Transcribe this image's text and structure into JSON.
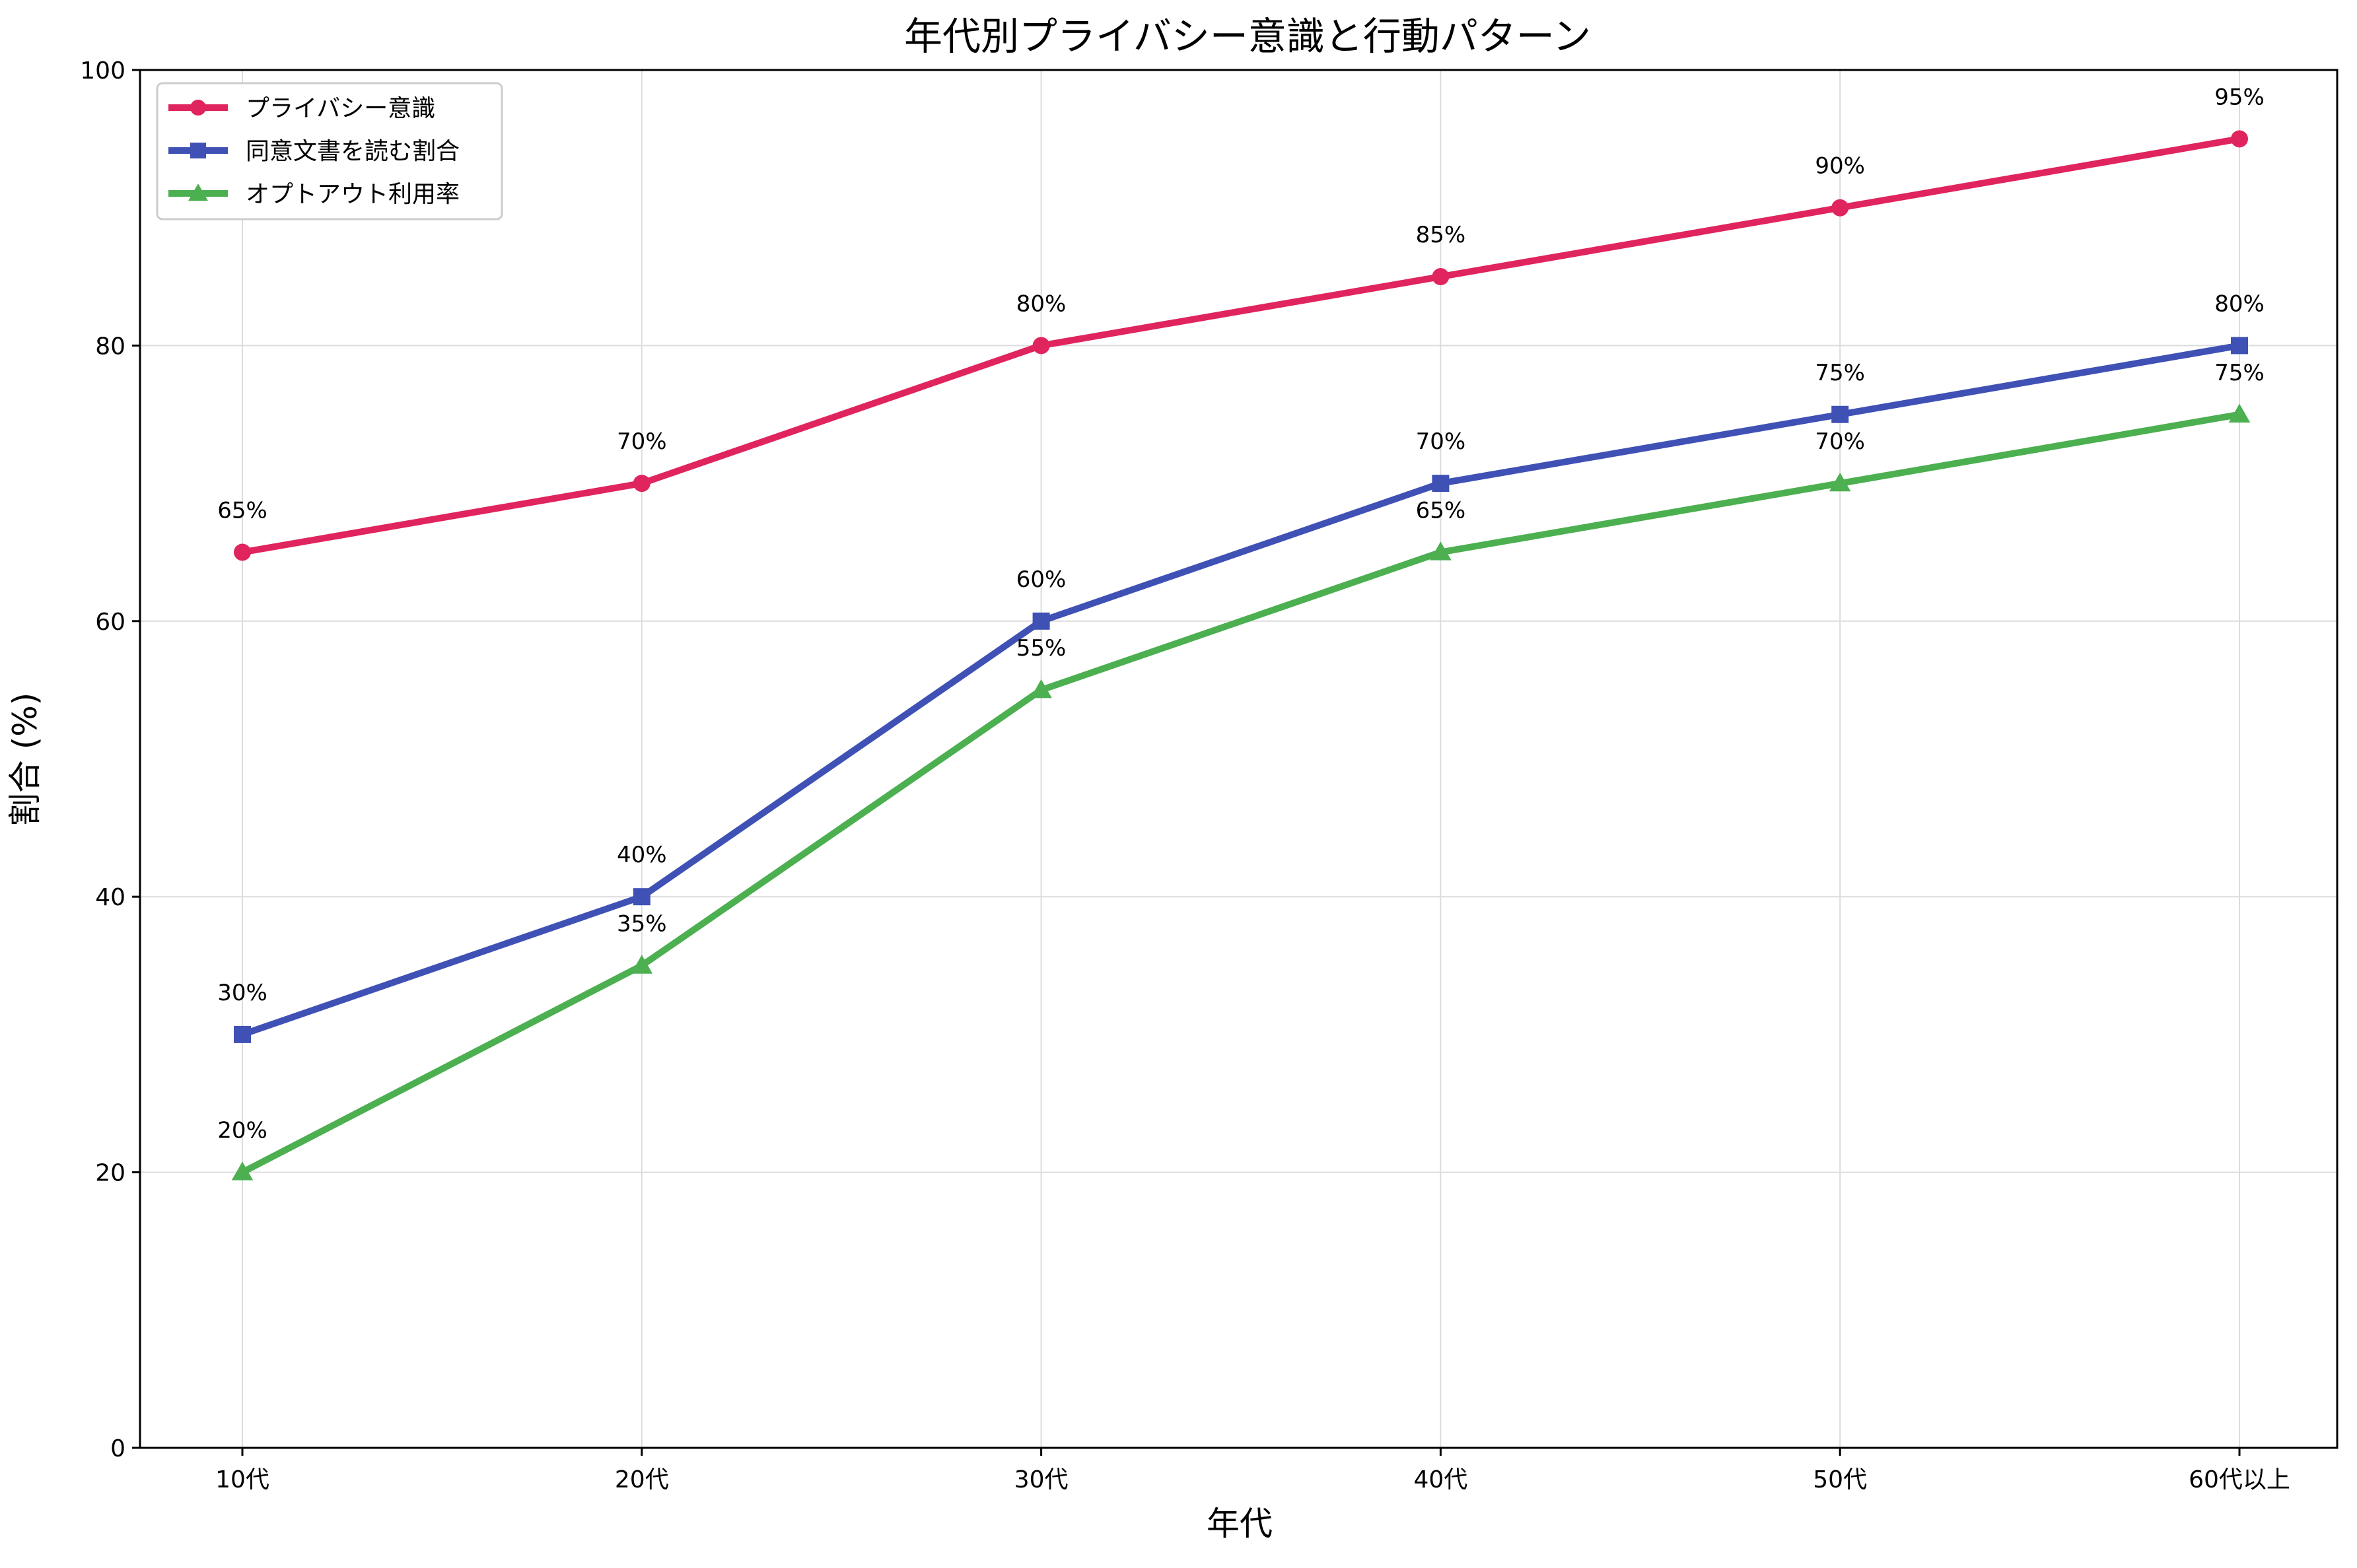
{
  "chart_data": {
    "type": "line",
    "title": "年代別プライバシー意識と行動パターン",
    "xlabel": "年代",
    "ylabel": "割合 (%)",
    "categories": [
      "10代",
      "20代",
      "30代",
      "40代",
      "50代",
      "60代以上"
    ],
    "ylim": [
      0,
      100
    ],
    "yticks": [
      0,
      20,
      40,
      60,
      80,
      100
    ],
    "grid": true,
    "legend_position": "top-left",
    "series": [
      {
        "name": "プライバシー意識",
        "values": [
          65,
          70,
          80,
          85,
          90,
          95
        ],
        "labels": [
          "65%",
          "70%",
          "80%",
          "85%",
          "90%",
          "95%"
        ],
        "color": "#e0245e",
        "marker": "circle"
      },
      {
        "name": "同意文書を読む割合",
        "values": [
          30,
          40,
          60,
          70,
          75,
          80
        ],
        "labels": [
          "30%",
          "40%",
          "60%",
          "70%",
          "75%",
          "80%"
        ],
        "color": "#3f51b5",
        "marker": "square"
      },
      {
        "name": "オプトアウト利用率",
        "values": [
          20,
          35,
          55,
          65,
          70,
          75
        ],
        "labels": [
          "20%",
          "35%",
          "55%",
          "65%",
          "70%",
          "75%"
        ],
        "color": "#4caf50",
        "marker": "triangle"
      }
    ]
  }
}
